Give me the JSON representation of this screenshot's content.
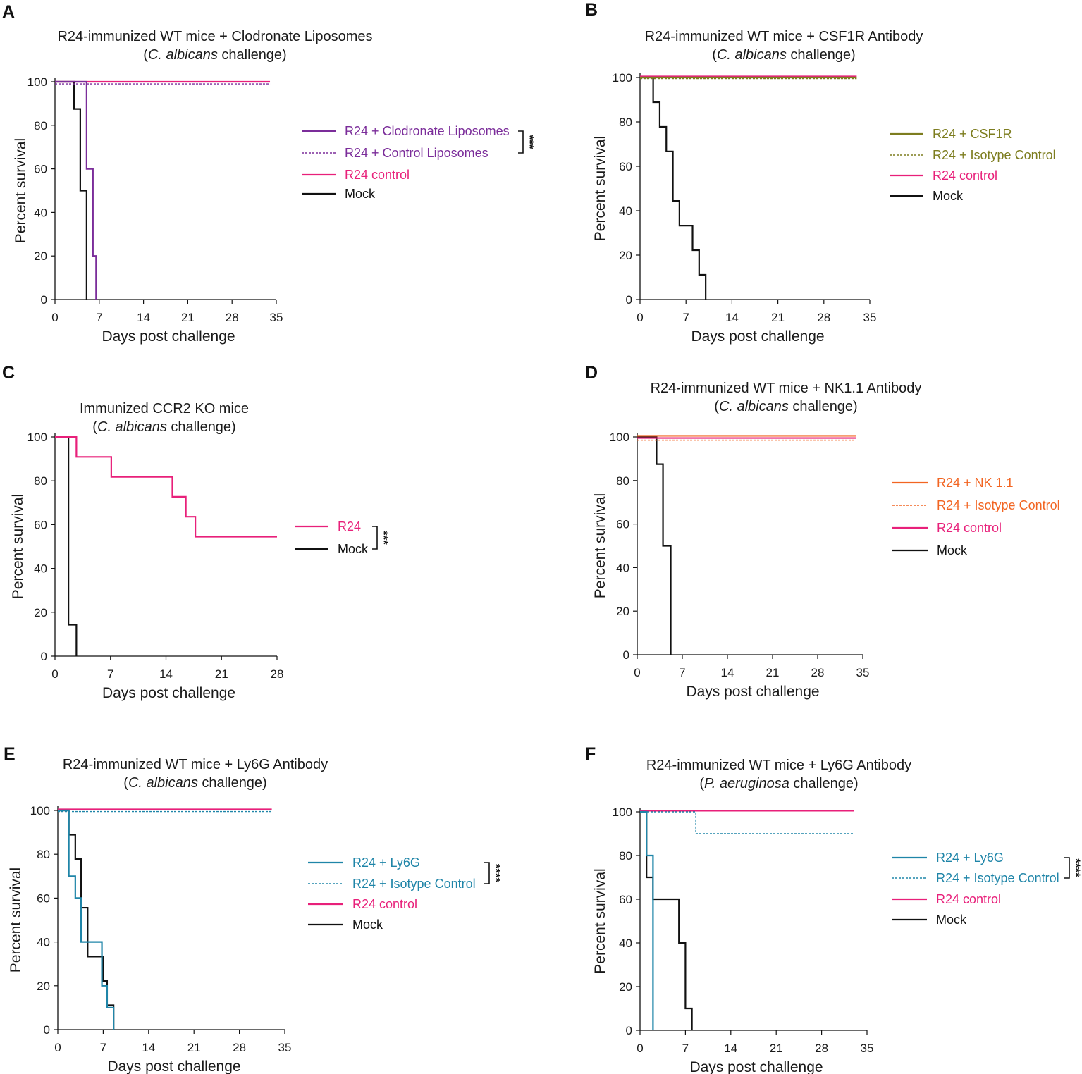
{
  "figure": {
    "colors": {
      "purple": "#7b2d9a",
      "olive": "#7d7d1f",
      "pink": "#e8207a",
      "orange": "#f26522",
      "teal": "#1f85a8",
      "black": "#111111"
    }
  },
  "chart_data": [
    {
      "panel": "A",
      "type": "line",
      "step": true,
      "title_line1": "R24-immunized WT mice + Clodronate Liposomes",
      "title_line2_italic": "C. albicans",
      "title_line2_rest": " challenge)",
      "title_line2_open": "(",
      "xlabel": "Days post challenge",
      "ylabel": "Percent survival",
      "xlim": [
        0,
        35
      ],
      "ylim": [
        0,
        100
      ],
      "xticks": [
        0,
        7,
        14,
        21,
        28,
        35
      ],
      "yticks": [
        0,
        20,
        40,
        60,
        80,
        100
      ],
      "significance": "***",
      "sig_pair": [
        0,
        1
      ],
      "series": [
        {
          "name": "R24 + Clodronate Liposomes",
          "color": "#7b2d9a",
          "dash": false,
          "x": [
            0,
            4.5,
            5,
            5.3,
            6,
            6.5
          ],
          "y": [
            100,
            100,
            60,
            60,
            20,
            0
          ]
        },
        {
          "name": "R24 + Control Liposomes",
          "color": "#7b2d9a",
          "dash": true,
          "x": [
            0,
            34
          ],
          "y": [
            99,
            99
          ]
        },
        {
          "name": "R24 control",
          "color": "#e8207a",
          "dash": false,
          "x": [
            0,
            34
          ],
          "y": [
            100,
            100
          ]
        },
        {
          "name": "Mock",
          "color": "#111111",
          "dash": false,
          "x": [
            0,
            3,
            4,
            5
          ],
          "y": [
            100,
            87.5,
            50,
            0
          ]
        }
      ]
    },
    {
      "panel": "B",
      "type": "line",
      "step": true,
      "title_line1": "R24-immunized WT mice + CSF1R Antibody",
      "title_line2_italic": "C. albicans",
      "title_line2_rest": " challenge)",
      "title_line2_open": "(",
      "xlabel": "Days post challenge",
      "ylabel": "Percent survival",
      "xlim": [
        0,
        35
      ],
      "ylim": [
        0,
        100
      ],
      "xticks": [
        0,
        7,
        14,
        21,
        28,
        35
      ],
      "yticks": [
        0,
        20,
        40,
        60,
        80,
        100
      ],
      "significance": "",
      "series": [
        {
          "name": "R24 + CSF1R",
          "color": "#7d7d1f",
          "dash": false,
          "x": [
            0,
            33
          ],
          "y": [
            100,
            100
          ]
        },
        {
          "name": "R24 + Isotype Control",
          "color": "#7d7d1f",
          "dash": true,
          "x": [
            0,
            33
          ],
          "y": [
            99.5,
            99.5
          ]
        },
        {
          "name": "R24 control",
          "color": "#e8207a",
          "dash": false,
          "x": [
            0,
            33
          ],
          "y": [
            100.5,
            100.5
          ]
        },
        {
          "name": "Mock",
          "color": "#111111",
          "dash": false,
          "x": [
            0,
            2,
            3,
            4,
            5,
            6,
            8,
            9,
            10
          ],
          "y": [
            100,
            88.9,
            77.8,
            66.7,
            44.4,
            33.3,
            22.2,
            11.1,
            0
          ]
        }
      ]
    },
    {
      "panel": "C",
      "type": "line",
      "step": true,
      "title_line1": "Immunized CCR2 KO mice",
      "title_line2_italic": "C. albicans",
      "title_line2_rest": " challenge)",
      "title_line2_open": "(",
      "xlabel": "Days post challenge",
      "ylabel": "Percent survival",
      "xlim": [
        0,
        28
      ],
      "ylim": [
        0,
        100
      ],
      "xticks": [
        0,
        7,
        14,
        21,
        28
      ],
      "yticks": [
        0,
        20,
        40,
        60,
        80,
        100
      ],
      "significance": "***",
      "sig_pair": [
        0,
        1
      ],
      "series": [
        {
          "name": "R24",
          "color": "#e8207a",
          "dash": false,
          "x": [
            0,
            2.7,
            7.1,
            14.8,
            16.5,
            17.7,
            28
          ],
          "y": [
            100,
            90.9,
            81.8,
            72.7,
            63.6,
            54.5,
            54.5
          ]
        },
        {
          "name": "Mock",
          "color": "#111111",
          "dash": false,
          "x": [
            0,
            1.7,
            2.7
          ],
          "y": [
            100,
            14.3,
            0
          ]
        }
      ]
    },
    {
      "panel": "D",
      "type": "line",
      "step": true,
      "title_line1": "R24-immunized WT mice + NK1.1 Antibody",
      "title_line2_italic": "C. albicans",
      "title_line2_rest": " challenge)",
      "title_line2_open": "(",
      "xlabel": "Days post challenge",
      "ylabel": "Percent survival",
      "xlim": [
        0,
        35
      ],
      "ylim": [
        0,
        100
      ],
      "xticks": [
        0,
        7,
        14,
        21,
        28,
        35
      ],
      "yticks": [
        0,
        20,
        40,
        60,
        80,
        100
      ],
      "significance": "",
      "series": [
        {
          "name": "R24 + NK 1.1",
          "color": "#f26522",
          "dash": false,
          "x": [
            0,
            34
          ],
          "y": [
            100.5,
            100.5
          ]
        },
        {
          "name": "R24 + Isotype Control",
          "color": "#f26522",
          "dash": true,
          "x": [
            0,
            34
          ],
          "y": [
            98.5,
            98.5
          ]
        },
        {
          "name": "R24 control",
          "color": "#e8207a",
          "dash": false,
          "x": [
            0,
            34
          ],
          "y": [
            99.5,
            99.5
          ]
        },
        {
          "name": "Mock",
          "color": "#111111",
          "dash": false,
          "x": [
            0,
            3,
            4,
            5.2
          ],
          "y": [
            100,
            87.5,
            50,
            0
          ]
        }
      ]
    },
    {
      "panel": "E",
      "type": "line",
      "step": true,
      "title_line1": "R24-immunized WT mice + Ly6G Antibody",
      "title_line2_italic": "C. albicans",
      "title_line2_rest": " challenge)",
      "title_line2_open": "(",
      "xlabel": "Days post challenge",
      "ylabel": "Percent survival",
      "xlim": [
        0,
        35
      ],
      "ylim": [
        0,
        100
      ],
      "xticks": [
        0,
        7,
        14,
        21,
        28,
        35
      ],
      "yticks": [
        0,
        20,
        40,
        60,
        80,
        100
      ],
      "significance": "****",
      "sig_pair": [
        0,
        1
      ],
      "series": [
        {
          "name": "R24 + Ly6G",
          "color": "#1f85a8",
          "dash": false,
          "x": [
            0,
            1.7,
            2.7,
            3.6,
            6.8,
            7.6,
            8.6
          ],
          "y": [
            100,
            70,
            60,
            40,
            20,
            10,
            0
          ]
        },
        {
          "name": "R24 + Isotype Control",
          "color": "#1f85a8",
          "dash": true,
          "x": [
            0,
            33
          ],
          "y": [
            99.5,
            99.5
          ]
        },
        {
          "name": "R24 control",
          "color": "#e8207a",
          "dash": false,
          "x": [
            0,
            33
          ],
          "y": [
            100.5,
            100.5
          ]
        },
        {
          "name": "Mock",
          "color": "#111111",
          "dash": false,
          "x": [
            0,
            1.7,
            2.7,
            3.6,
            4.6,
            7,
            7.6,
            8.6
          ],
          "y": [
            100,
            88.9,
            77.8,
            55.6,
            33.3,
            22.2,
            11.1,
            0
          ]
        }
      ]
    },
    {
      "panel": "F",
      "type": "line",
      "step": true,
      "title_line1": "R24-immunized WT mice + Ly6G Antibody",
      "title_line2_italic": "P. aeruginosa",
      "title_line2_rest": " challenge)",
      "title_line2_open": "(",
      "xlabel": "Days post challenge",
      "ylabel": "Percent survival",
      "xlim": [
        0,
        35
      ],
      "ylim": [
        0,
        100
      ],
      "xticks": [
        0,
        7,
        14,
        21,
        28,
        35
      ],
      "yticks": [
        0,
        20,
        40,
        60,
        80,
        100
      ],
      "significance": "****",
      "sig_pair": [
        0,
        1
      ],
      "series": [
        {
          "name": "R24 + Ly6G",
          "color": "#1f85a8",
          "dash": false,
          "x": [
            0,
            1,
            2
          ],
          "y": [
            100,
            80,
            0
          ]
        },
        {
          "name": "R24 + Isotype Control",
          "color": "#1f85a8",
          "dash": true,
          "x": [
            0,
            8.6,
            33
          ],
          "y": [
            100,
            90,
            90
          ]
        },
        {
          "name": "R24 control",
          "color": "#e8207a",
          "dash": false,
          "x": [
            0,
            33
          ],
          "y": [
            100.5,
            100.5
          ]
        },
        {
          "name": "Mock",
          "color": "#111111",
          "dash": false,
          "x": [
            0,
            1,
            2,
            6,
            7,
            8
          ],
          "y": [
            100,
            70,
            60,
            40,
            10,
            0
          ]
        }
      ]
    }
  ]
}
